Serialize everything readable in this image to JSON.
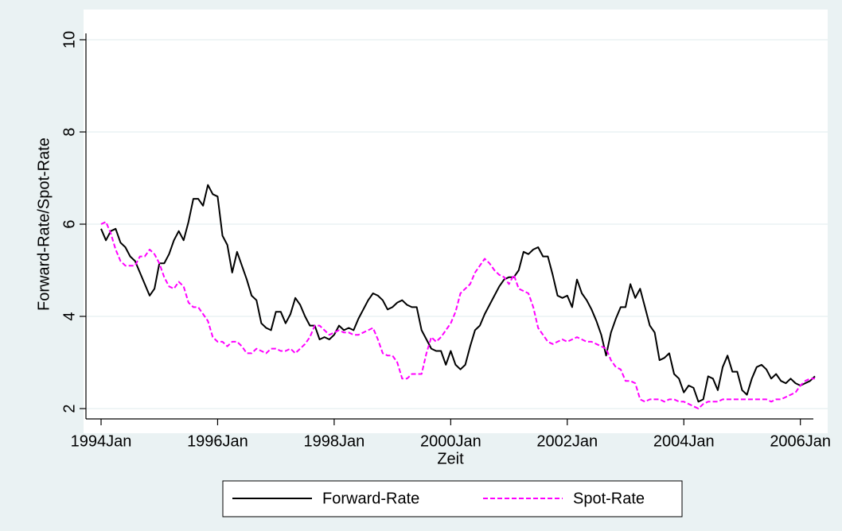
{
  "chart_data": {
    "type": "line",
    "ylabel": "Forward-Rate/Spot-Rate",
    "xlabel": "Zeit",
    "x": [
      "1994Jan",
      "1994Feb",
      "1994Mar",
      "1994Apr",
      "1994May",
      "1994Jun",
      "1994Jul",
      "1994Aug",
      "1994Sep",
      "1994Oct",
      "1994Nov",
      "1994Dec",
      "1995Jan",
      "1995Feb",
      "1995Mar",
      "1995Apr",
      "1995May",
      "1995Jun",
      "1995Jul",
      "1995Aug",
      "1995Sep",
      "1995Oct",
      "1995Nov",
      "1995Dec",
      "1996Jan",
      "1996Feb",
      "1996Mar",
      "1996Apr",
      "1996May",
      "1996Jun",
      "1996Jul",
      "1996Aug",
      "1996Sep",
      "1996Oct",
      "1996Nov",
      "1996Dec",
      "1997Jan",
      "1997Feb",
      "1997Mar",
      "1997Apr",
      "1997May",
      "1997Jun",
      "1997Jul",
      "1997Aug",
      "1997Sep",
      "1997Oct",
      "1997Nov",
      "1997Dec",
      "1998Jan",
      "1998Feb",
      "1998Mar",
      "1998Apr",
      "1998May",
      "1998Jun",
      "1998Jul",
      "1998Aug",
      "1998Sep",
      "1998Oct",
      "1998Nov",
      "1998Dec",
      "1999Jan",
      "1999Feb",
      "1999Mar",
      "1999Apr",
      "1999May",
      "1999Jun",
      "1999Jul",
      "1999Aug",
      "1999Sep",
      "1999Oct",
      "1999Nov",
      "1999Dec",
      "2000Jan",
      "2000Feb",
      "2000Mar",
      "2000Apr",
      "2000May",
      "2000Jun",
      "2000Jul",
      "2000Aug",
      "2000Sep",
      "2000Oct",
      "2000Nov",
      "2000Dec",
      "2001Jan",
      "2001Feb",
      "2001Mar",
      "2001Apr",
      "2001May",
      "2001Jun",
      "2001Jul",
      "2001Aug",
      "2001Sep",
      "2001Oct",
      "2001Nov",
      "2001Dec",
      "2002Jan",
      "2002Feb",
      "2002Mar",
      "2002Apr",
      "2002May",
      "2002Jun",
      "2002Jul",
      "2002Aug",
      "2002Sep",
      "2002Oct",
      "2002Nov",
      "2002Dec",
      "2003Jan",
      "2003Feb",
      "2003Mar",
      "2003Apr",
      "2003May",
      "2003Jun",
      "2003Jul",
      "2003Aug",
      "2003Sep",
      "2003Oct",
      "2003Nov",
      "2003Dec",
      "2004Jan",
      "2004Feb",
      "2004Mar",
      "2004Apr",
      "2004May",
      "2004Jun",
      "2004Jul",
      "2004Aug",
      "2004Sep",
      "2004Oct",
      "2004Nov",
      "2004Dec",
      "2005Jan",
      "2005Feb",
      "2005Mar",
      "2005Apr",
      "2005May",
      "2005Jun",
      "2005Jul",
      "2005Aug",
      "2005Sep",
      "2005Oct",
      "2005Nov",
      "2005Dec",
      "2006Jan",
      "2006Feb",
      "2006Mar",
      "2006Apr"
    ],
    "series": [
      {
        "name": "Forward-Rate",
        "color": "#000000",
        "dash": false,
        "values": [
          5.9,
          5.65,
          5.85,
          5.9,
          5.6,
          5.5,
          5.3,
          5.2,
          4.95,
          4.7,
          4.45,
          4.6,
          5.15,
          5.15,
          5.35,
          5.65,
          5.85,
          5.65,
          6.05,
          6.55,
          6.55,
          6.4,
          6.85,
          6.65,
          6.6,
          5.75,
          5.55,
          4.95,
          5.4,
          5.1,
          4.8,
          4.45,
          4.35,
          3.85,
          3.75,
          3.7,
          4.1,
          4.1,
          3.85,
          4.05,
          4.4,
          4.25,
          4.0,
          3.8,
          3.8,
          3.5,
          3.55,
          3.5,
          3.6,
          3.8,
          3.7,
          3.75,
          3.7,
          3.95,
          4.15,
          4.35,
          4.5,
          4.45,
          4.35,
          4.15,
          4.2,
          4.3,
          4.35,
          4.25,
          4.2,
          4.2,
          3.7,
          3.5,
          3.3,
          3.25,
          3.25,
          2.95,
          3.25,
          2.95,
          2.85,
          2.95,
          3.35,
          3.7,
          3.8,
          4.05,
          4.25,
          4.45,
          4.65,
          4.8,
          4.85,
          4.85,
          5.0,
          5.4,
          5.35,
          5.45,
          5.5,
          5.3,
          5.3,
          4.9,
          4.45,
          4.4,
          4.45,
          4.2,
          4.8,
          4.5,
          4.35,
          4.15,
          3.9,
          3.6,
          3.15,
          3.65,
          3.95,
          4.2,
          4.2,
          4.7,
          4.4,
          4.6,
          4.2,
          3.8,
          3.65,
          3.05,
          3.1,
          3.2,
          2.75,
          2.65,
          2.35,
          2.5,
          2.45,
          2.15,
          2.2,
          2.7,
          2.65,
          2.4,
          2.9,
          3.15,
          2.8,
          2.8,
          2.4,
          2.3,
          2.65,
          2.9,
          2.95,
          2.85,
          2.65,
          2.75,
          2.6,
          2.55,
          2.65,
          2.55,
          2.5,
          2.55,
          2.6,
          2.7
        ]
      },
      {
        "name": "Spot-Rate",
        "color": "#ff00ff",
        "dash": true,
        "values": [
          6.0,
          6.05,
          5.8,
          5.45,
          5.2,
          5.1,
          5.1,
          5.1,
          5.3,
          5.3,
          5.45,
          5.35,
          5.15,
          4.85,
          4.65,
          4.6,
          4.75,
          4.65,
          4.3,
          4.2,
          4.2,
          4.05,
          3.9,
          3.55,
          3.45,
          3.45,
          3.35,
          3.45,
          3.45,
          3.35,
          3.2,
          3.2,
          3.3,
          3.25,
          3.2,
          3.3,
          3.3,
          3.25,
          3.25,
          3.3,
          3.2,
          3.3,
          3.4,
          3.55,
          3.8,
          3.8,
          3.7,
          3.6,
          3.65,
          3.7,
          3.65,
          3.65,
          3.6,
          3.6,
          3.65,
          3.7,
          3.75,
          3.5,
          3.2,
          3.15,
          3.15,
          3.0,
          2.65,
          2.65,
          2.75,
          2.75,
          2.75,
          3.2,
          3.55,
          3.45,
          3.55,
          3.7,
          3.85,
          4.1,
          4.5,
          4.6,
          4.7,
          4.95,
          5.1,
          5.25,
          5.15,
          5.0,
          4.9,
          4.85,
          4.7,
          4.9,
          4.6,
          4.55,
          4.5,
          4.2,
          3.75,
          3.6,
          3.45,
          3.4,
          3.45,
          3.5,
          3.45,
          3.5,
          3.55,
          3.5,
          3.45,
          3.45,
          3.4,
          3.35,
          3.3,
          3.05,
          2.9,
          2.85,
          2.6,
          2.6,
          2.55,
          2.2,
          2.15,
          2.2,
          2.2,
          2.2,
          2.15,
          2.2,
          2.2,
          2.15,
          2.15,
          2.1,
          2.05,
          2.0,
          2.1,
          2.15,
          2.15,
          2.15,
          2.2,
          2.2,
          2.2,
          2.2,
          2.2,
          2.2,
          2.2,
          2.2,
          2.2,
          2.2,
          2.15,
          2.2,
          2.2,
          2.25,
          2.3,
          2.35,
          2.5,
          2.6,
          2.65,
          2.65
        ]
      }
    ],
    "xlim": [
      "1994Jan",
      "2006Apr"
    ],
    "xticks": [
      "1994Jan",
      "1996Jan",
      "1998Jan",
      "2000Jan",
      "2002Jan",
      "2004Jan",
      "2006Jan"
    ],
    "ylim": [
      2,
      10
    ],
    "yticks": [
      2,
      4,
      6,
      8,
      10
    ],
    "grid": true,
    "legend": "bottom"
  }
}
